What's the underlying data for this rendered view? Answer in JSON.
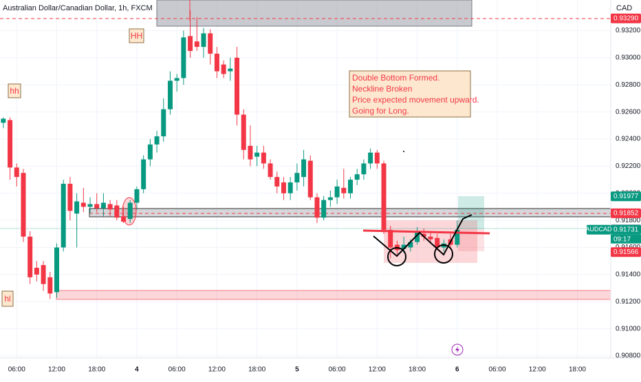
{
  "chart_data": {
    "type": "candlestick",
    "title": "Australian Dollar/Canadian Dollar, 1h, FXCM",
    "currency": "CAD",
    "symbol": "AUDCAD",
    "countdown": "09:17",
    "x": [
      0,
      1,
      2,
      3,
      4,
      5,
      6,
      7,
      8,
      9,
      10,
      11,
      12,
      13,
      14,
      15,
      16,
      17,
      18,
      19,
      20,
      21,
      22,
      23,
      24,
      25,
      26,
      27,
      28,
      29,
      30,
      31,
      32,
      33,
      34,
      35,
      36,
      37,
      38,
      39,
      40,
      41,
      42,
      43,
      44,
      45,
      46,
      47,
      48,
      49,
      50,
      51,
      52,
      53,
      54,
      55,
      56,
      57,
      58,
      59,
      60,
      61,
      62,
      63,
      64,
      65,
      66,
      67,
      68
    ],
    "open": [
      0.9252,
      0.9254,
      0.9219,
      0.9215,
      0.9168,
      0.9145,
      0.9147,
      0.9138,
      0.9127,
      0.916,
      0.9207,
      0.9185,
      0.9193,
      0.919,
      0.9192,
      0.9189,
      0.9192,
      0.9191,
      0.9183,
      0.9181,
      0.9193,
      0.9203,
      0.9225,
      0.9236,
      0.9242,
      0.9262,
      0.9283,
      0.9285,
      0.9316,
      0.9312,
      0.9308,
      0.9318,
      0.9303,
      0.9295,
      0.929,
      0.93,
      0.9258,
      0.9235,
      0.9227,
      0.923,
      0.9222,
      0.9212,
      0.9208,
      0.92,
      0.9208,
      0.9212,
      0.9224,
      0.9197,
      0.9182,
      0.9195,
      0.9197,
      0.9204,
      0.92,
      0.921,
      0.9214,
      0.9222,
      0.923,
      0.9222,
      0.9173,
      0.9162,
      0.9159,
      0.916,
      0.9164,
      0.917,
      0.9168,
      0.9167,
      0.916,
      0.9166,
      0.9162
    ],
    "high": [
      0.9256,
      0.9256,
      0.9222,
      0.9218,
      0.9172,
      0.915,
      0.915,
      0.9142,
      0.9163,
      0.921,
      0.9212,
      0.92,
      0.9204,
      0.9197,
      0.92,
      0.92,
      0.9195,
      0.9195,
      0.919,
      0.9195,
      0.9205,
      0.9228,
      0.924,
      0.9246,
      0.927,
      0.929,
      0.9288,
      0.932,
      0.9335,
      0.933,
      0.9322,
      0.9321,
      0.9308,
      0.9298,
      0.93,
      0.9308,
      0.9262,
      0.925,
      0.9235,
      0.9235,
      0.9225,
      0.9216,
      0.9212,
      0.9212,
      0.9222,
      0.9232,
      0.9228,
      0.92,
      0.9198,
      0.9202,
      0.921,
      0.9218,
      0.9212,
      0.9218,
      0.9225,
      0.9233,
      0.9232,
      0.9224,
      0.9176,
      0.9165,
      0.9168,
      0.9166,
      0.9175,
      0.9174,
      0.9172,
      0.917,
      0.9166,
      0.917,
      0.918
    ],
    "low": [
      0.9248,
      0.921,
      0.9205,
      0.9164,
      0.9133,
      0.9135,
      0.9128,
      0.9122,
      0.9123,
      0.9157,
      0.918,
      0.916,
      0.9186,
      0.9185,
      0.9186,
      0.9183,
      0.9183,
      0.918,
      0.9178,
      0.9178,
      0.9188,
      0.92,
      0.922,
      0.923,
      0.9238,
      0.9258,
      0.9275,
      0.928,
      0.93,
      0.9305,
      0.93,
      0.9295,
      0.9285,
      0.9285,
      0.9283,
      0.925,
      0.9225,
      0.922,
      0.922,
      0.9218,
      0.921,
      0.92,
      0.9195,
      0.9195,
      0.9202,
      0.9205,
      0.9195,
      0.9178,
      0.918,
      0.919,
      0.9192,
      0.9196,
      0.9196,
      0.9206,
      0.921,
      0.9218,
      0.9218,
      0.917,
      0.9152,
      0.9155,
      0.9156,
      0.9157,
      0.9162,
      0.9165,
      0.9163,
      0.9158,
      0.9157,
      0.916,
      0.916
    ],
    "close": [
      0.9255,
      0.9219,
      0.9212,
      0.9168,
      0.9138,
      0.914,
      0.9133,
      0.9126,
      0.916,
      0.9207,
      0.9187,
      0.9194,
      0.919,
      0.9192,
      0.9189,
      0.9193,
      0.9188,
      0.9182,
      0.9179,
      0.9193,
      0.9203,
      0.9225,
      0.9236,
      0.9242,
      0.9262,
      0.9283,
      0.9285,
      0.9315,
      0.9305,
      0.9308,
      0.9318,
      0.9303,
      0.929,
      0.9288,
      0.9292,
      0.9258,
      0.9232,
      0.9225,
      0.923,
      0.9222,
      0.9212,
      0.9205,
      0.92,
      0.9208,
      0.9215,
      0.9225,
      0.9197,
      0.9182,
      0.9195,
      0.9197,
      0.9205,
      0.92,
      0.921,
      0.9214,
      0.9222,
      0.923,
      0.9222,
      0.9173,
      0.916,
      0.9158,
      0.9162,
      0.9164,
      0.9172,
      0.9168,
      0.9166,
      0.916,
      0.9163,
      0.9162,
      0.9173
    ],
    "up_color": "#089981",
    "down_color": "#f23645",
    "xlim": [
      -0.5,
      91
    ],
    "xticks": [
      {
        "value": 2,
        "label": "06:00"
      },
      {
        "value": 8,
        "label": "12:00"
      },
      {
        "value": 14,
        "label": "18:00"
      },
      {
        "value": 20,
        "label": "4"
      },
      {
        "value": 26,
        "label": "06:00"
      },
      {
        "value": 32,
        "label": "12:00"
      },
      {
        "value": 38,
        "label": "18:00"
      },
      {
        "value": 44,
        "label": "5"
      },
      {
        "value": 50,
        "label": "06:00"
      },
      {
        "value": 56,
        "label": "12:00"
      },
      {
        "value": 62,
        "label": "18:00"
      },
      {
        "value": 68,
        "label": "6"
      },
      {
        "value": 74,
        "label": "06:00"
      },
      {
        "value": 80,
        "label": "12:00"
      },
      {
        "value": 86,
        "label": "18:00"
      }
    ],
    "ylim": [
      0.90785,
      0.93426
    ],
    "yticks": [
      {
        "value": 0.908,
        "label": "0.90800"
      },
      {
        "value": 0.91,
        "label": "0.91000"
      },
      {
        "value": 0.912,
        "label": "0.91200"
      },
      {
        "value": 0.914,
        "label": "0.91400"
      },
      {
        "value": 0.916,
        "label": "0.91600"
      },
      {
        "value": 0.918,
        "label": "0.91800"
      },
      {
        "value": 0.92,
        "label": "0.92000"
      },
      {
        "value": 0.922,
        "label": "0.92200"
      },
      {
        "value": 0.924,
        "label": "0.92400"
      },
      {
        "value": 0.926,
        "label": "0.92600"
      },
      {
        "value": 0.928,
        "label": "0.92800"
      },
      {
        "value": 0.93,
        "label": "0.93000"
      },
      {
        "value": 0.932,
        "label": "0.93200"
      }
    ],
    "grid": true,
    "price_labels": [
      {
        "value": 0.9329,
        "label": "0.93290",
        "color": "#f23645"
      },
      {
        "value": 0.91977,
        "label": "0.91977",
        "color": "#089981"
      },
      {
        "value": 0.91852,
        "label": "0.91852",
        "color": "#f23645"
      },
      {
        "value": 0.91735,
        "label": "0.91735",
        "color": "#b2b5be"
      },
      {
        "value": 0.91731,
        "label": "0.91731",
        "color": "#089981"
      },
      {
        "value": 0.91566,
        "label": "0.91566",
        "color": "#f23645"
      }
    ],
    "annotation": [
      "Double Bottom Formed.",
      "Neckline Broken",
      "Price expected movement upward.",
      "Going for Long."
    ],
    "swing_labels": [
      "HH",
      "hh",
      "hl"
    ]
  }
}
